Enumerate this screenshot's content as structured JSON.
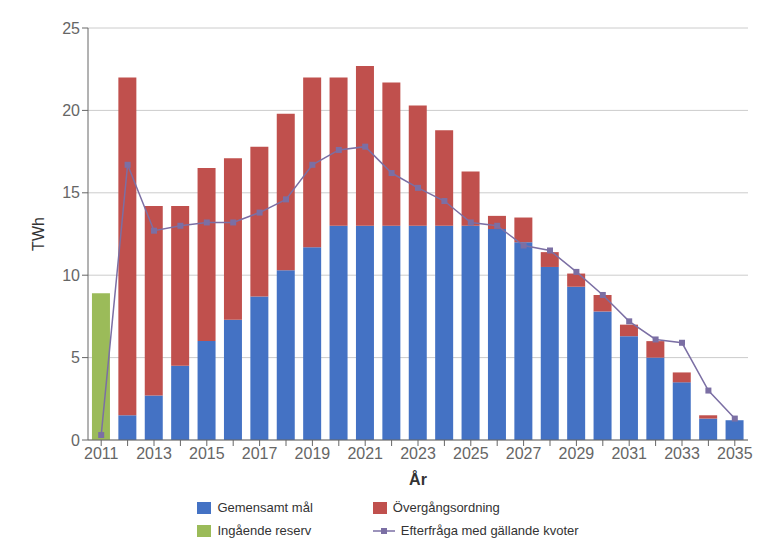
{
  "chart_data": {
    "type": "bar",
    "stacked": true,
    "xlabel": "År",
    "ylabel": "TWh",
    "categories": [
      "2011",
      null,
      "2013",
      null,
      "2015",
      null,
      "2017",
      null,
      "2019",
      null,
      "2021",
      null,
      "2023",
      null,
      "2025",
      null,
      "2027",
      null,
      "2029",
      null,
      "2031",
      null,
      "2033",
      null,
      "2035"
    ],
    "ylim": [
      0,
      25
    ],
    "yticks": [
      0,
      5,
      10,
      15,
      20,
      25
    ],
    "grid": true,
    "legend": "bottom",
    "series": [
      {
        "name": "Gemensamt mål",
        "type": "bar",
        "color": "#4472C4",
        "values": [
          0,
          1.5,
          2.7,
          4.5,
          6.0,
          7.3,
          8.7,
          10.3,
          11.7,
          13.0,
          13.0,
          13.0,
          13.0,
          13.0,
          13.0,
          12.8,
          12.0,
          10.5,
          9.3,
          7.8,
          6.3,
          5.0,
          3.5,
          1.3,
          1.2
        ]
      },
      {
        "name": "Övergångsordning",
        "type": "bar",
        "color": "#C0504D",
        "values": [
          0,
          20.5,
          11.5,
          9.7,
          10.5,
          9.8,
          9.1,
          9.5,
          10.3,
          9.0,
          9.7,
          8.7,
          7.3,
          5.8,
          3.3,
          0.8,
          1.5,
          0.9,
          0.8,
          1.0,
          0.7,
          1.0,
          0.6,
          0.2,
          0
        ]
      },
      {
        "name": "Ingående reserv",
        "type": "bar",
        "color": "#9BBB59",
        "values": [
          8.9,
          0,
          0,
          0,
          0,
          0,
          0,
          0,
          0,
          0,
          0,
          0,
          0,
          0,
          0,
          0,
          0,
          0,
          0,
          0,
          0,
          0,
          0,
          0,
          0
        ]
      },
      {
        "name": "Efterfråga med gällande kvoter",
        "type": "line",
        "color": "#7B6FA4",
        "marker": "square",
        "values": [
          0.3,
          16.7,
          12.7,
          13.0,
          13.2,
          13.2,
          13.8,
          14.6,
          16.7,
          17.6,
          17.8,
          16.2,
          15.3,
          14.5,
          13.2,
          13.0,
          11.8,
          11.5,
          10.2,
          8.8,
          7.2,
          6.1,
          5.9,
          3.0,
          1.3
        ]
      }
    ]
  }
}
